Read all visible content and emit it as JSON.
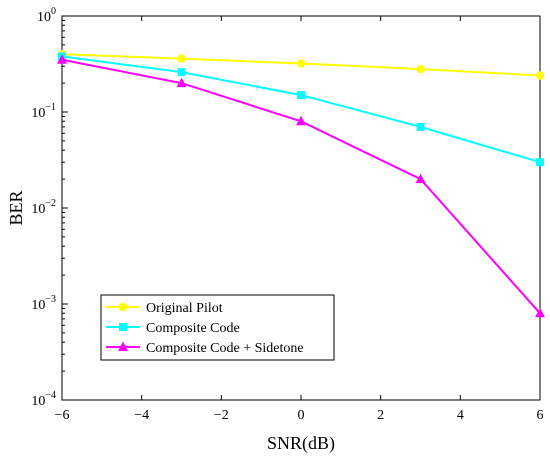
{
  "chart_data": {
    "type": "line",
    "xlabel": "SNR(dB)",
    "ylabel": "BER",
    "xlim": [
      -6,
      6
    ],
    "ylim": [
      0.0001,
      1
    ],
    "yscale": "log",
    "xticks": [
      -6,
      -4,
      -2,
      0,
      2,
      4,
      6
    ],
    "xtick_labels": [
      "−6",
      "−4",
      "−2",
      "0",
      "2",
      "4",
      "6"
    ],
    "yticks": [
      {
        "value": 1,
        "base": "10",
        "exp": "0"
      },
      {
        "value": 0.1,
        "base": "10",
        "exp": "−1"
      },
      {
        "value": 0.01,
        "base": "10",
        "exp": "−2"
      },
      {
        "value": 0.001,
        "base": "10",
        "exp": "−3"
      },
      {
        "value": 0.0001,
        "base": "10",
        "exp": "−4"
      }
    ],
    "x": [
      -6,
      -3,
      0,
      3,
      6
    ],
    "grid": false,
    "legend_position": "bottom-left",
    "series": [
      {
        "name": "Original Pilot",
        "color": "#ffff00",
        "marker": "circle",
        "values": [
          0.4,
          0.36,
          0.32,
          0.28,
          0.24
        ]
      },
      {
        "name": "Composite Code",
        "color": "#00ffff",
        "marker": "square",
        "values": [
          0.38,
          0.26,
          0.15,
          0.07,
          0.03
        ]
      },
      {
        "name": "Composite Code + Sidetone",
        "color": "#ff00ff",
        "marker": "triangle",
        "values": [
          0.35,
          0.2,
          0.08,
          0.02,
          0.0008
        ]
      }
    ]
  }
}
